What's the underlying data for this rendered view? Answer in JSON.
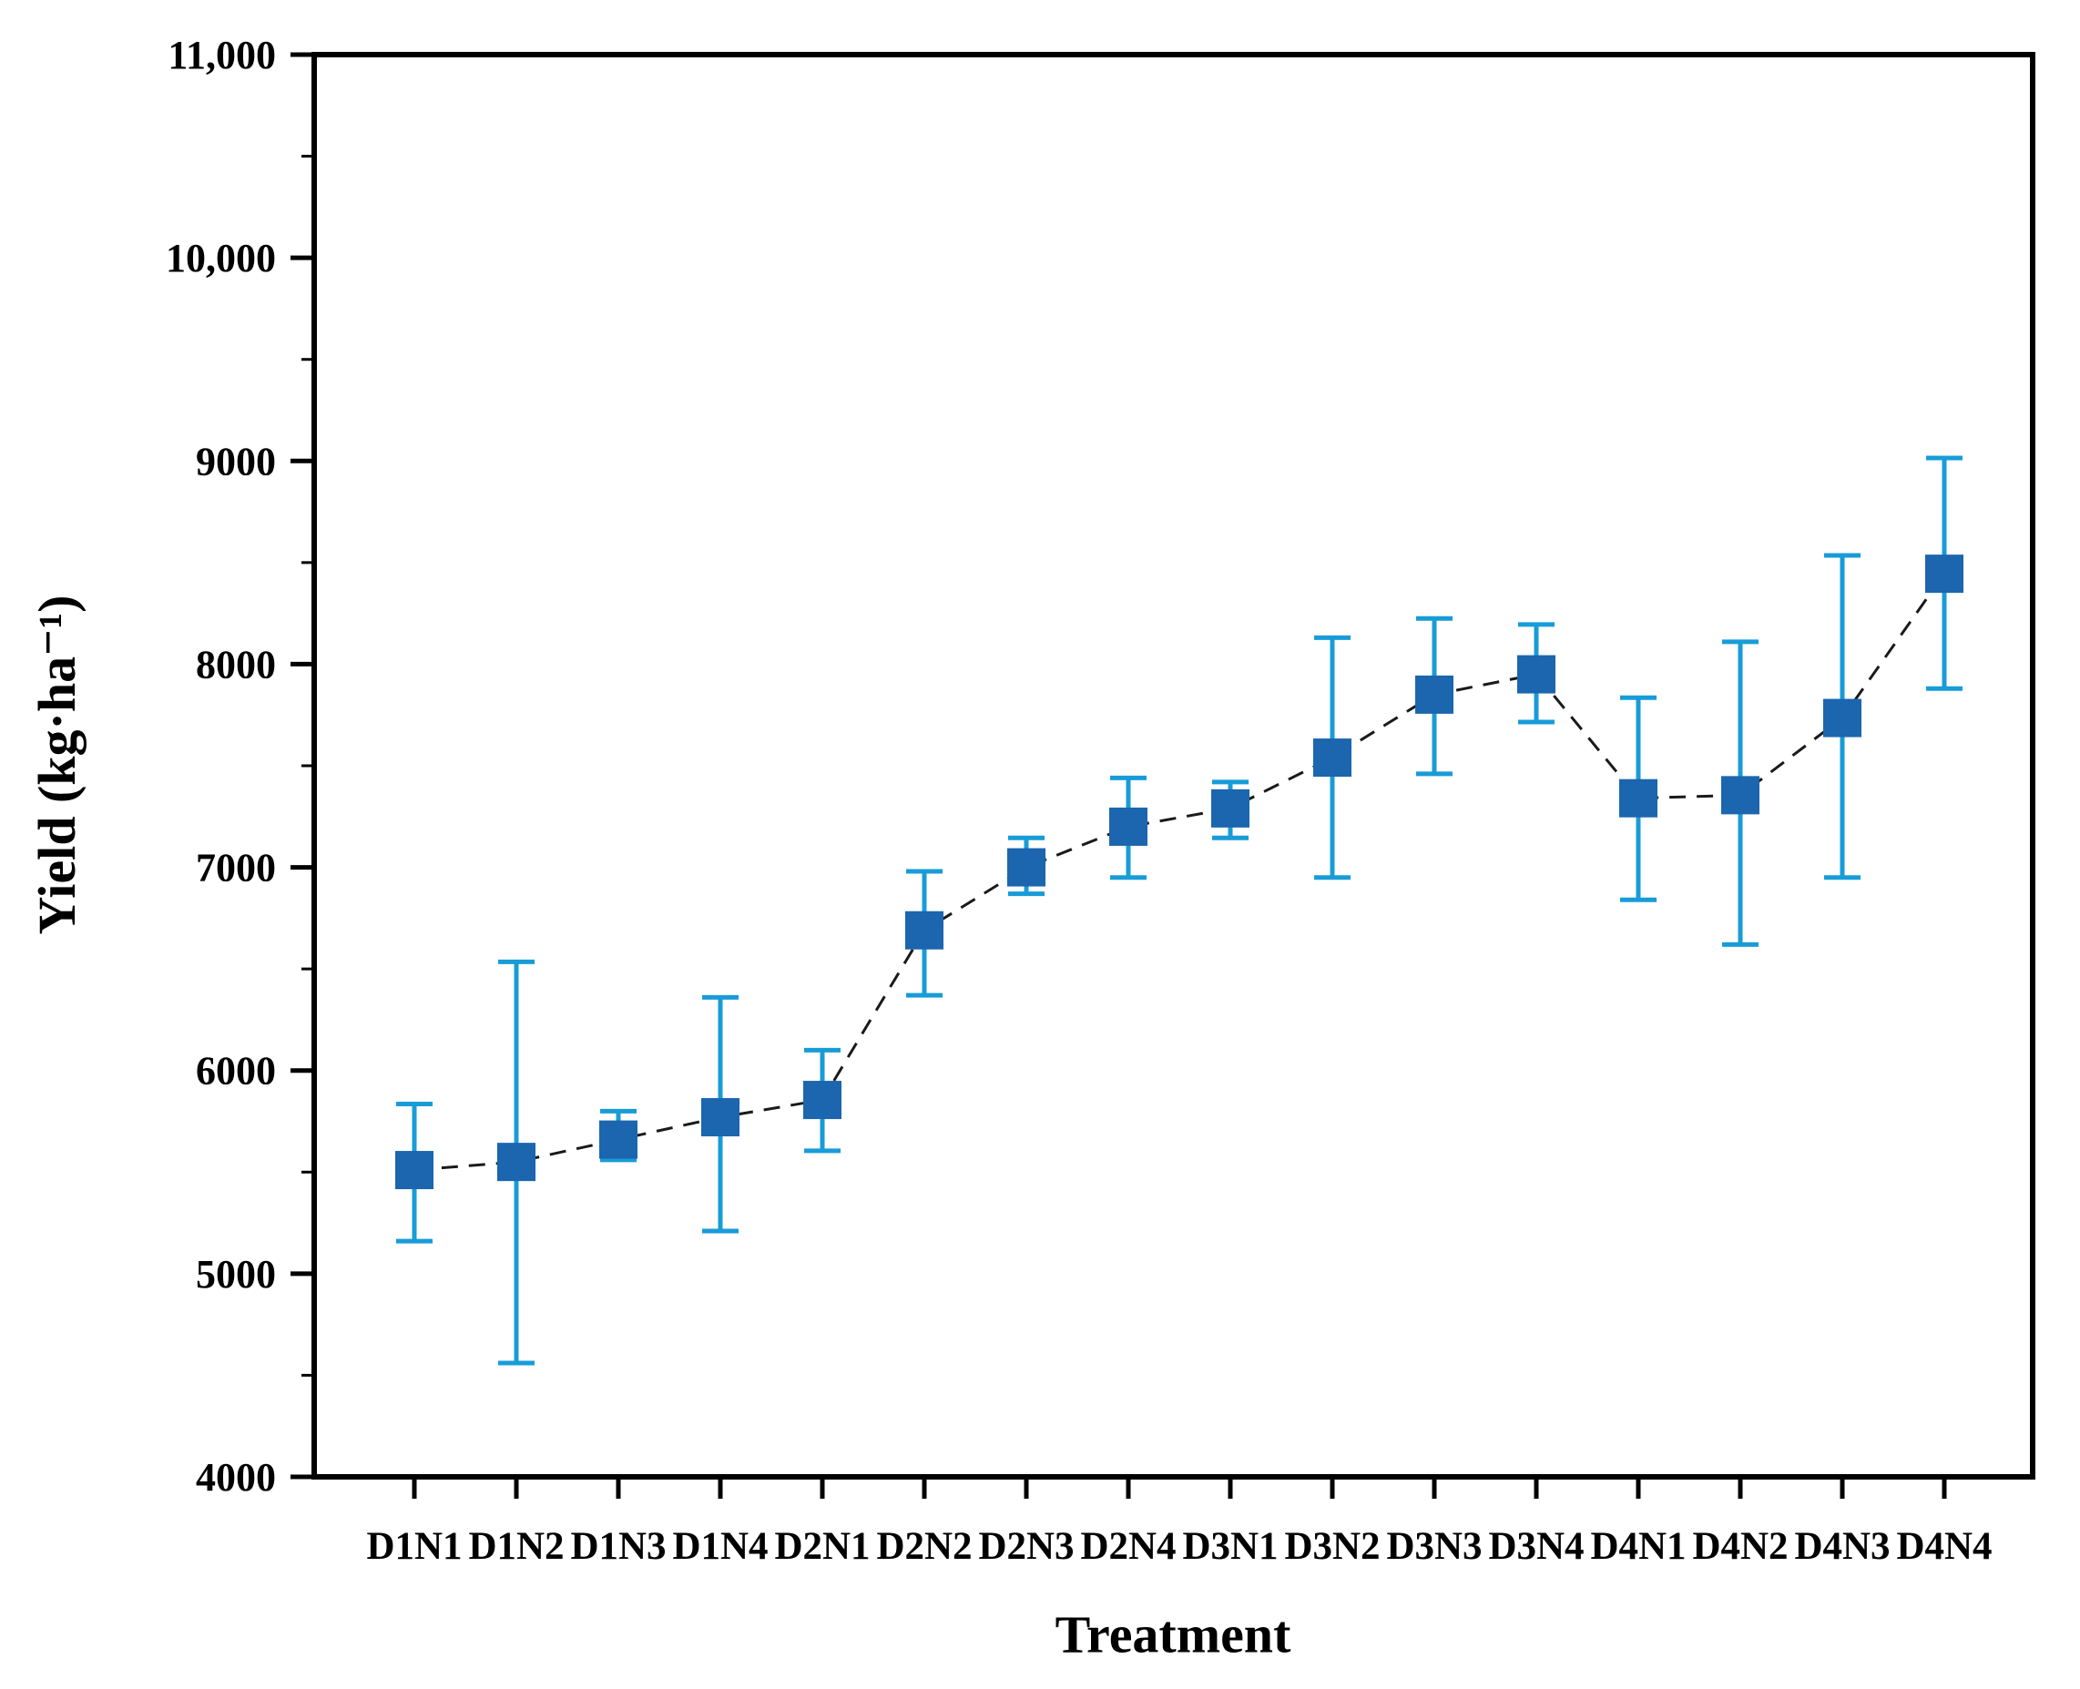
{
  "chart_data": {
    "type": "scatter",
    "title": "",
    "xlabel": "Treatment",
    "ylabel": "Yield (kg·ha⁻¹)",
    "ylim": [
      4000,
      11000
    ],
    "minor_tick_interval": 500,
    "grid": false,
    "legend": "none",
    "yticks": [
      {
        "value": 4000,
        "label": "4000"
      },
      {
        "value": 5000,
        "label": "5000"
      },
      {
        "value": 6000,
        "label": "6000"
      },
      {
        "value": 7000,
        "label": "7000"
      },
      {
        "value": 8000,
        "label": "8000"
      },
      {
        "value": 9000,
        "label": "9000"
      },
      {
        "value": 10000,
        "label": "10,000"
      },
      {
        "value": 11000,
        "label": "11,000"
      }
    ],
    "categories": [
      "D1N1",
      "D1N2",
      "D1N3",
      "D1N4",
      "D2N1",
      "D2N2",
      "D2N3",
      "D2N4",
      "D3N1",
      "D3N2",
      "D3N3",
      "D3N4",
      "D4N1",
      "D4N2",
      "D4N3",
      "D4N4"
    ],
    "series": [
      {
        "name": "Yield",
        "values": [
          5510,
          5550,
          5660,
          5770,
          5855,
          6690,
          7000,
          7200,
          7290,
          7540,
          7850,
          7950,
          7340,
          7355,
          7735,
          8445
        ],
        "error_low": [
          5160,
          4560,
          5560,
          5210,
          5605,
          6370,
          6870,
          6950,
          7145,
          6950,
          7460,
          7715,
          6840,
          6620,
          6950,
          7880
        ],
        "error_high": [
          5835,
          6535,
          5800,
          6360,
          6100,
          6980,
          7145,
          7440,
          7420,
          8130,
          8225,
          8195,
          7835,
          8110,
          8535,
          9015
        ]
      }
    ],
    "styles": {
      "marker_color": "#1b66ae",
      "error_bar_color": "#189cd8",
      "line_color": "#1a1a1a",
      "axis_color": "#000000"
    }
  }
}
